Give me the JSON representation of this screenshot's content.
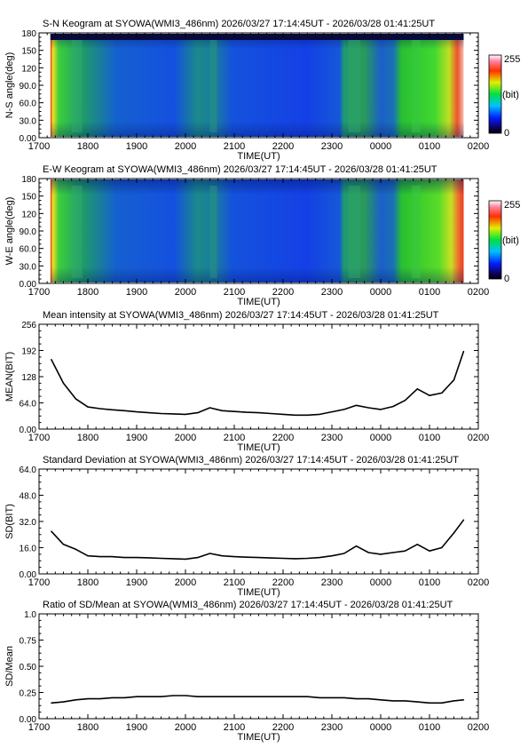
{
  "colorbar": {
    "max_label": "255",
    "mid_label": "(bit)",
    "min_label": "0"
  },
  "chart_data": [
    {
      "type": "heatmap",
      "title": "S-N Keogram at SYOWA(WMI3_486nm)    2026/03/27 17:14:45UT - 2026/03/28 01:41:25UT",
      "xlabel": "TIME(UT)",
      "ylabel": "N-S angle(deg)",
      "xticks": [
        "1700",
        "1800",
        "1900",
        "2000",
        "2100",
        "2200",
        "2300",
        "0000",
        "0100",
        "0200"
      ],
      "yticks": [
        "0.00",
        "30.0",
        "60.0",
        "90.0",
        "120",
        "150",
        "180"
      ],
      "ylim": [
        0,
        180
      ],
      "colorscale": "rainbow (blue-green-yellow-red-white)",
      "clim": [
        0,
        255
      ],
      "color_unit": "(bit)"
    },
    {
      "type": "heatmap",
      "title": "E-W Keogram at SYOWA(WMI3_486nm)    2026/03/27 17:14:45UT - 2026/03/28 01:41:25UT",
      "xlabel": "TIME(UT)",
      "ylabel": "W-E angle(deg)",
      "xticks": [
        "1700",
        "1800",
        "1900",
        "2000",
        "2100",
        "2200",
        "2300",
        "0000",
        "0100",
        "0200"
      ],
      "yticks": [
        "0.00",
        "30.0",
        "60.0",
        "90.0",
        "120",
        "150",
        "180"
      ],
      "ylim": [
        0,
        180
      ],
      "colorscale": "rainbow (blue-green-yellow-red-white)",
      "clim": [
        0,
        255
      ],
      "color_unit": "(bit)"
    },
    {
      "type": "line",
      "title": "Mean intensity at SYOWA(WMI3_486nm)    2026/03/27 17:14:45UT - 2026/03/28 01:41:25UT",
      "xlabel": "TIME(UT)",
      "ylabel": "MEAN(BIT)",
      "xticks": [
        "1700",
        "1800",
        "1900",
        "2000",
        "2100",
        "2200",
        "2300",
        "0000",
        "0100",
        "0200"
      ],
      "yticks": [
        "0.00",
        "64.0",
        "128",
        "192",
        "256"
      ],
      "ylim": [
        0,
        256
      ],
      "series": [
        {
          "points": [
            [
              "17:15",
              170
            ],
            [
              "17:30",
              112
            ],
            [
              "17:45",
              74
            ],
            [
              "18:00",
              54
            ],
            [
              "18:15",
              50
            ],
            [
              "18:30",
              47
            ],
            [
              "18:45",
              45
            ],
            [
              "19:00",
              42
            ],
            [
              "19:15",
              40
            ],
            [
              "19:30",
              38
            ],
            [
              "19:45",
              37
            ],
            [
              "20:00",
              36
            ],
            [
              "20:15",
              40
            ],
            [
              "20:30",
              52
            ],
            [
              "20:45",
              45
            ],
            [
              "21:00",
              43
            ],
            [
              "21:15",
              41
            ],
            [
              "21:30",
              40
            ],
            [
              "21:45",
              38
            ],
            [
              "22:00",
              36
            ],
            [
              "22:15",
              34
            ],
            [
              "22:30",
              34
            ],
            [
              "22:45",
              36
            ],
            [
              "23:00",
              42
            ],
            [
              "23:15",
              48
            ],
            [
              "23:30",
              58
            ],
            [
              "23:45",
              52
            ],
            [
              "00:00",
              48
            ],
            [
              "00:15",
              55
            ],
            [
              "00:30",
              70
            ],
            [
              "00:45",
              98
            ],
            [
              "01:00",
              82
            ],
            [
              "01:15",
              88
            ],
            [
              "01:30",
              120
            ],
            [
              "01:42",
              190
            ]
          ]
        }
      ]
    },
    {
      "type": "line",
      "title": "Standard Deviation at SYOWA(WMI3_486nm)    2026/03/27 17:14:45UT - 2026/03/28 01:41:25UT",
      "xlabel": "TIME(UT)",
      "ylabel": "SD(BIT)",
      "xticks": [
        "1700",
        "1800",
        "1900",
        "2000",
        "2100",
        "2200",
        "2300",
        "0000",
        "0100",
        "0200"
      ],
      "yticks": [
        "0.00",
        "16.0",
        "32.0",
        "48.0",
        "64.0"
      ],
      "ylim": [
        0,
        64
      ],
      "series": [
        {
          "points": [
            [
              "17:15",
              26
            ],
            [
              "17:30",
              18
            ],
            [
              "17:45",
              15
            ],
            [
              "18:00",
              11
            ],
            [
              "18:15",
              10.5
            ],
            [
              "18:30",
              10.5
            ],
            [
              "18:45",
              10
            ],
            [
              "19:00",
              10
            ],
            [
              "19:15",
              9.8
            ],
            [
              "19:30",
              9.5
            ],
            [
              "19:45",
              9.3
            ],
            [
              "20:00",
              9
            ],
            [
              "20:15",
              10
            ],
            [
              "20:30",
              12.5
            ],
            [
              "20:45",
              11
            ],
            [
              "21:00",
              10.5
            ],
            [
              "21:15",
              10.2
            ],
            [
              "21:30",
              10
            ],
            [
              "21:45",
              9.7
            ],
            [
              "22:00",
              9.5
            ],
            [
              "22:15",
              9.3
            ],
            [
              "22:30",
              9.5
            ],
            [
              "22:45",
              10
            ],
            [
              "23:00",
              11
            ],
            [
              "23:15",
              12.5
            ],
            [
              "23:30",
              17
            ],
            [
              "23:45",
              13
            ],
            [
              "00:00",
              12
            ],
            [
              "00:15",
              13
            ],
            [
              "00:30",
              14
            ],
            [
              "00:45",
              18
            ],
            [
              "01:00",
              14
            ],
            [
              "01:15",
              16
            ],
            [
              "01:30",
              25
            ],
            [
              "01:42",
              33
            ]
          ]
        }
      ]
    },
    {
      "type": "line",
      "title": "Ratio of SD/Mean at SYOWA(WMI3_486nm)    2026/03/27 17:14:45UT - 2026/03/28 01:41:25UT",
      "xlabel": "TIME(UT)",
      "ylabel": "SD/Mean",
      "xticks": [
        "1700",
        "1800",
        "1900",
        "2000",
        "2100",
        "2200",
        "2300",
        "0000",
        "0100",
        "0200"
      ],
      "yticks": [
        "0.00",
        "0.25",
        "0.50",
        "0.75",
        "1.0"
      ],
      "ylim": [
        0,
        1
      ],
      "series": [
        {
          "points": [
            [
              "17:15",
              0.15
            ],
            [
              "17:30",
              0.16
            ],
            [
              "17:45",
              0.18
            ],
            [
              "18:00",
              0.19
            ],
            [
              "18:15",
              0.19
            ],
            [
              "18:30",
              0.2
            ],
            [
              "18:45",
              0.2
            ],
            [
              "19:00",
              0.21
            ],
            [
              "19:15",
              0.21
            ],
            [
              "19:30",
              0.21
            ],
            [
              "19:45",
              0.22
            ],
            [
              "20:00",
              0.22
            ],
            [
              "20:15",
              0.21
            ],
            [
              "20:30",
              0.21
            ],
            [
              "20:45",
              0.21
            ],
            [
              "21:00",
              0.21
            ],
            [
              "21:15",
              0.21
            ],
            [
              "21:30",
              0.21
            ],
            [
              "21:45",
              0.21
            ],
            [
              "22:00",
              0.21
            ],
            [
              "22:15",
              0.21
            ],
            [
              "22:30",
              0.21
            ],
            [
              "22:45",
              0.2
            ],
            [
              "23:00",
              0.2
            ],
            [
              "23:15",
              0.2
            ],
            [
              "23:30",
              0.19
            ],
            [
              "23:45",
              0.19
            ],
            [
              "00:00",
              0.18
            ],
            [
              "00:15",
              0.17
            ],
            [
              "00:30",
              0.17
            ],
            [
              "00:45",
              0.16
            ],
            [
              "01:00",
              0.15
            ],
            [
              "01:15",
              0.15
            ],
            [
              "01:30",
              0.17
            ],
            [
              "01:42",
              0.18
            ]
          ]
        }
      ]
    }
  ]
}
